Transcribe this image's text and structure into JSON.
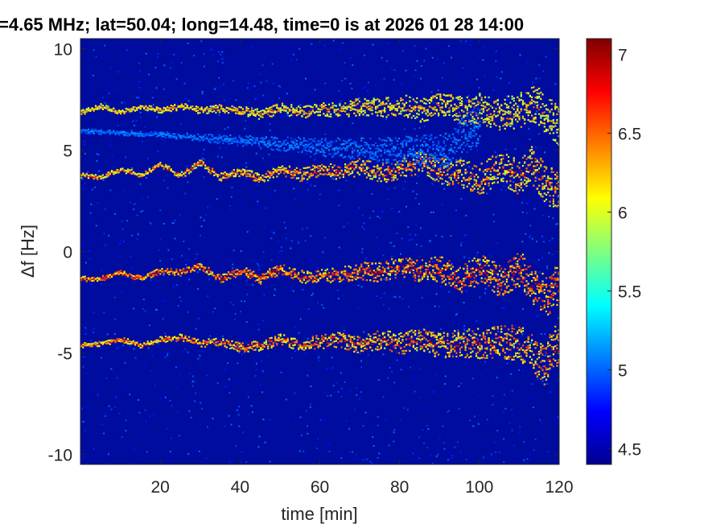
{
  "chart_data": {
    "type": "heatmap",
    "title": "=4.65 MHz;  lat=50.04; long=14.48, time=0 is at 2026 01 28 14:00",
    "xlabel": "time [min]",
    "ylabel": "Δf [Hz]",
    "xlim": [
      0,
      120
    ],
    "ylim": [
      -10.5,
      10.5
    ],
    "x_ticks": [
      20,
      40,
      60,
      80,
      100,
      120
    ],
    "x_tick_labels": [
      "20",
      "40",
      "60",
      "80",
      "100",
      "120"
    ],
    "y_ticks": [
      10,
      5,
      0,
      -5,
      -10
    ],
    "y_tick_labels": [
      "10",
      "5",
      "0",
      "-5",
      "-10"
    ],
    "colorbar": {
      "colormap": "jet",
      "clim": [
        4.4,
        7.1
      ],
      "ticks": [
        7,
        6.5,
        6,
        5.5,
        5,
        4.5
      ],
      "tick_labels": [
        "7",
        "6.5",
        "6",
        "5.5",
        "5",
        "4.5"
      ]
    },
    "background_level": 4.7,
    "traces": [
      {
        "points": [
          [
            0,
            6.9
          ],
          [
            5,
            7.2
          ],
          [
            10,
            6.9
          ],
          [
            15,
            7.2
          ],
          [
            20,
            7.0
          ],
          [
            25,
            7.2
          ],
          [
            30,
            7.0
          ],
          [
            35,
            7.1
          ],
          [
            40,
            7.0
          ],
          [
            45,
            6.8
          ],
          [
            50,
            7.1
          ],
          [
            55,
            6.9
          ],
          [
            60,
            7.1
          ],
          [
            65,
            7.0
          ],
          [
            70,
            7.2
          ],
          [
            75,
            7.1
          ],
          [
            80,
            7.3
          ],
          [
            85,
            7.0
          ],
          [
            90,
            7.3
          ],
          [
            95,
            7.0
          ],
          [
            100,
            7.1
          ],
          [
            105,
            6.8
          ],
          [
            110,
            7.0
          ],
          [
            114,
            7.3
          ],
          [
            118,
            6.6
          ],
          [
            120,
            6.2
          ]
        ],
        "strength": [
          5.8,
          6.6
        ]
      },
      {
        "points": [
          [
            0,
            3.8
          ],
          [
            5,
            3.7
          ],
          [
            10,
            4.1
          ],
          [
            15,
            3.8
          ],
          [
            20,
            4.3
          ],
          [
            25,
            3.8
          ],
          [
            30,
            4.4
          ],
          [
            35,
            3.7
          ],
          [
            40,
            4.0
          ],
          [
            45,
            3.6
          ],
          [
            50,
            4.1
          ],
          [
            55,
            3.8
          ],
          [
            60,
            4.1
          ],
          [
            65,
            3.9
          ],
          [
            70,
            4.2
          ],
          [
            75,
            3.9
          ],
          [
            80,
            4.1
          ],
          [
            85,
            4.5
          ],
          [
            90,
            4.0
          ],
          [
            95,
            3.9
          ],
          [
            100,
            3.6
          ],
          [
            105,
            4.2
          ],
          [
            110,
            3.7
          ],
          [
            113,
            4.3
          ],
          [
            117,
            3.2
          ],
          [
            120,
            3.3
          ]
        ],
        "strength": [
          5.8,
          6.9
        ]
      },
      {
        "points": [
          [
            0,
            -1.3
          ],
          [
            5,
            -1.3
          ],
          [
            10,
            -1.0
          ],
          [
            15,
            -1.3
          ],
          [
            20,
            -0.9
          ],
          [
            25,
            -1.0
          ],
          [
            30,
            -0.7
          ],
          [
            35,
            -1.3
          ],
          [
            40,
            -0.9
          ],
          [
            45,
            -1.3
          ],
          [
            50,
            -0.8
          ],
          [
            55,
            -1.2
          ],
          [
            60,
            -1.2
          ],
          [
            65,
            -1.1
          ],
          [
            70,
            -0.9
          ],
          [
            75,
            -1.0
          ],
          [
            80,
            -0.7
          ],
          [
            85,
            -0.9
          ],
          [
            90,
            -0.8
          ],
          [
            95,
            -1.4
          ],
          [
            100,
            -0.8
          ],
          [
            105,
            -1.4
          ],
          [
            110,
            -0.8
          ],
          [
            113,
            -1.6
          ],
          [
            117,
            -2.1
          ],
          [
            120,
            -1.5
          ]
        ],
        "strength": [
          6.0,
          7.0
        ]
      },
      {
        "points": [
          [
            0,
            -4.6
          ],
          [
            5,
            -4.5
          ],
          [
            10,
            -4.3
          ],
          [
            15,
            -4.6
          ],
          [
            20,
            -4.3
          ],
          [
            25,
            -4.2
          ],
          [
            30,
            -4.5
          ],
          [
            35,
            -4.4
          ],
          [
            40,
            -4.7
          ],
          [
            45,
            -4.6
          ],
          [
            50,
            -4.3
          ],
          [
            55,
            -4.6
          ],
          [
            60,
            -4.4
          ],
          [
            65,
            -4.3
          ],
          [
            70,
            -4.6
          ],
          [
            75,
            -4.3
          ],
          [
            80,
            -4.5
          ],
          [
            85,
            -4.3
          ],
          [
            90,
            -4.6
          ],
          [
            95,
            -4.5
          ],
          [
            100,
            -4.5
          ],
          [
            105,
            -4.4
          ],
          [
            110,
            -4.5
          ],
          [
            113,
            -5.0
          ],
          [
            116,
            -5.6
          ],
          [
            118,
            -4.7
          ],
          [
            120,
            -4.6
          ]
        ],
        "strength": [
          5.9,
          6.9
        ]
      },
      {
        "points": [
          [
            0,
            6.0
          ],
          [
            20,
            5.8
          ],
          [
            40,
            5.5
          ],
          [
            60,
            5.2
          ],
          [
            80,
            5.0
          ],
          [
            92,
            5.0
          ],
          [
            96,
            5.8
          ],
          [
            100,
            6.3
          ]
        ],
        "strength": [
          4.9,
          5.2
        ]
      }
    ]
  }
}
